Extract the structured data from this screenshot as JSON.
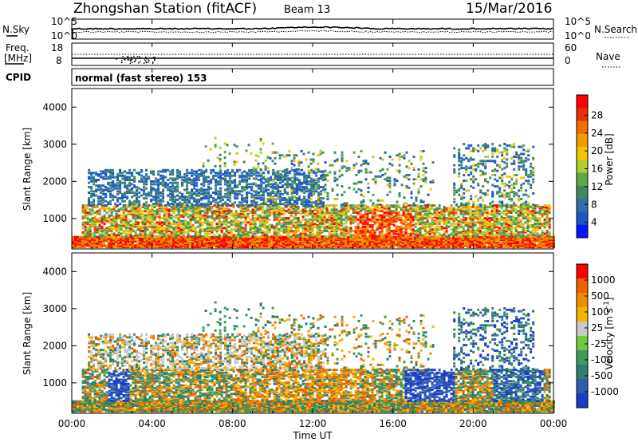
{
  "header": {
    "title": "Zhongshan Station (fitACF)",
    "beam": "Beam 13",
    "date": "15/Mar/2016"
  },
  "status_panels": {
    "nsky_label": "N.Sky",
    "nsearch_label": "N.Search",
    "nsky_ticks": [
      "10^5",
      "10^0"
    ],
    "nsearch_ticks": [
      "10^5",
      "10^0"
    ],
    "freq_label_line1": "Freq.",
    "freq_label_line2": "[MHz]",
    "freq_ticks": [
      "18",
      "8"
    ],
    "nave_label": "Nave",
    "nave_ticks": [
      "60",
      "0"
    ],
    "cpid_label": "CPID",
    "cpid_text": "normal (fast stereo) 153"
  },
  "chart_data": [
    {
      "type": "heatmap",
      "title": "",
      "quantity": "Power",
      "xlabel": "Time UT",
      "ylabel": "Slant Range [km]",
      "xlim_hours": [
        0,
        24
      ],
      "ylim_km": [
        180,
        4500
      ],
      "yticks": [
        "4000",
        "3000",
        "2000",
        "1000"
      ],
      "colorbar_label": "Power [dB]",
      "colorbar_ticks": [
        "28",
        "24",
        "20",
        "16",
        "12",
        "8",
        "4"
      ],
      "colorbar_colors": [
        "#0015ff",
        "#1e56c8",
        "#2e6fa8",
        "#3d8a5e",
        "#5aa84a",
        "#b5cc2e",
        "#f5c400",
        "#f59a00",
        "#f07000",
        "#e83000",
        "#ff0000"
      ],
      "features": [
        {
          "range_km": [
            250,
            450
          ],
          "time_h": [
            0,
            24
          ],
          "level": "high"
        },
        {
          "range_km": [
            500,
            1300
          ],
          "time_h": [
            1,
            23
          ],
          "level": "medium"
        },
        {
          "range_km": [
            600,
            1100
          ],
          "time_h": [
            14,
            17
          ],
          "level": "high"
        },
        {
          "range_km": [
            1300,
            2400
          ],
          "time_h": [
            1,
            12
          ],
          "level": "low"
        }
      ]
    },
    {
      "type": "heatmap",
      "title": "",
      "quantity": "Velocity",
      "xlabel": "Time UT",
      "ylabel": "Slant Range [km]",
      "xlim_hours": [
        0,
        24
      ],
      "ylim_km": [
        180,
        4500
      ],
      "yticks": [
        "4000",
        "3000",
        "2000",
        "1000"
      ],
      "colorbar_label": "Velocity [m s^-1]",
      "colorbar_ticks": [
        "1000",
        "500",
        "100",
        "25",
        "-25",
        "-100",
        "-500",
        "-1000"
      ],
      "colorbar_colors": [
        "#1a3cc8",
        "#2c5fa8",
        "#2e7d6e",
        "#3e9a5a",
        "#6ccb3c",
        "#c8c8c8",
        "#f5b400",
        "#f08c00",
        "#ee6000",
        "#ff0000"
      ]
    }
  ],
  "xaxis": {
    "ticks": [
      "00:00",
      "04:00",
      "08:00",
      "12:00",
      "16:00",
      "20:00",
      "00:00"
    ],
    "label": "Time UT"
  }
}
